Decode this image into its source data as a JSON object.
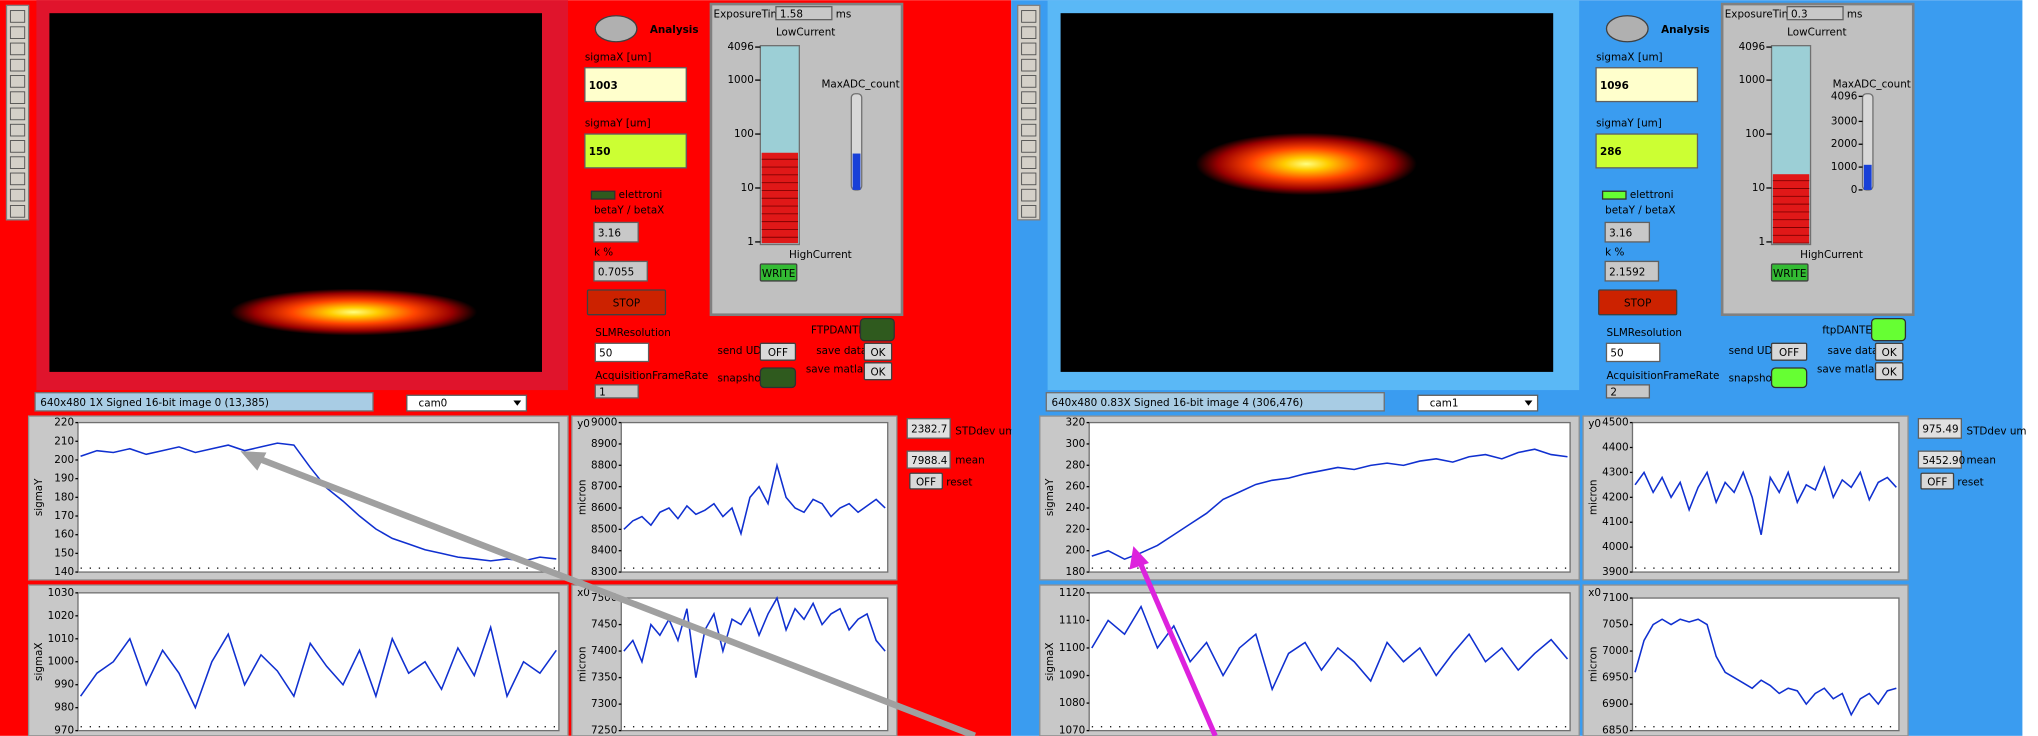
{
  "labels": {
    "analysis": "Analysis",
    "sigma_x": "sigmaX [um]",
    "sigma_y": "sigmaY [um]",
    "elettroni": "elettroni",
    "beta": "betaY / betaX",
    "k": "k %",
    "stop": "STOP",
    "slm": "SLMResolution",
    "acq": "AcquisitionFrameRate",
    "exposure": "ExposureTime",
    "ms": "ms",
    "low": "LowCurrent",
    "high": "HighCurrent",
    "max_adc": "MaxADC_count",
    "write": "WRITE",
    "send_udp": "send UDP",
    "off": "OFF",
    "snapshot": "snapshot",
    "save_data": "save data",
    "save_matlab": "save matlab",
    "ok": "OK",
    "std": "STDdev um",
    "mean": "mean",
    "reset": "reset"
  },
  "gauge_ticks": [
    1,
    10,
    100,
    1000,
    4096
  ],
  "panels": [
    {
      "background": "#ff0000",
      "frame": "#e0142c",
      "led_on": "#2f5a1e",
      "sigma_x": "1003",
      "sigma_y": "150",
      "beta_ratio": "3.16",
      "k_percent": "0.7055",
      "slm_resolution": "50",
      "frame_rate": "1",
      "exposure": "1.58",
      "current_level": 45,
      "ftp_label": "FTPDANTE",
      "status": "640x480 1X Signed 16-bit image 0    (13,385)",
      "camera": "cam0",
      "std": "2382.7",
      "mean": "7988.4",
      "plots": [
        {
          "type": "line",
          "y_label": "sigmaY",
          "color": "#1030d0",
          "ylim": [
            140,
            220
          ],
          "yticks": [
            140,
            150,
            160,
            170,
            180,
            190,
            200,
            210,
            220
          ],
          "values": [
            202,
            205,
            204,
            206,
            203,
            205,
            207,
            204,
            206,
            208,
            205,
            207,
            209,
            208,
            196,
            185,
            178,
            170,
            163,
            158,
            155,
            152,
            150,
            148,
            147,
            146,
            147,
            146,
            148,
            147
          ]
        },
        {
          "type": "line",
          "y_label": "micron",
          "corner_label": "y0",
          "color": "#1030d0",
          "ylim": [
            8300,
            9000
          ],
          "yticks": [
            8300,
            8400,
            8500,
            8600,
            8700,
            8800,
            8900,
            9000
          ],
          "values": [
            8500,
            8540,
            8560,
            8520,
            8580,
            8600,
            8550,
            8610,
            8570,
            8590,
            8620,
            8560,
            8600,
            8480,
            8650,
            8700,
            8620,
            8800,
            8650,
            8600,
            8580,
            8640,
            8620,
            8560,
            8600,
            8620,
            8580,
            8610,
            8640,
            8600
          ]
        },
        {
          "type": "line",
          "y_label": "sigmaX",
          "color": "#1030d0",
          "ylim": [
            970,
            1030
          ],
          "yticks": [
            970,
            980,
            990,
            1000,
            1010,
            1020,
            1030
          ],
          "values": [
            985,
            995,
            1000,
            1010,
            990,
            1005,
            995,
            980,
            1000,
            1012,
            990,
            1003,
            996,
            985,
            1008,
            998,
            990,
            1005,
            985,
            1010,
            995,
            1000,
            988,
            1006,
            994,
            1015,
            985,
            1000,
            995,
            1005
          ]
        },
        {
          "type": "line",
          "y_label": "micron",
          "corner_label": "x0",
          "color": "#1030d0",
          "ylim": [
            7250,
            7500
          ],
          "yticks": [
            7250,
            7300,
            7350,
            7400,
            7450,
            7500
          ],
          "values": [
            7400,
            7420,
            7380,
            7450,
            7430,
            7460,
            7420,
            7480,
            7350,
            7440,
            7470,
            7400,
            7460,
            7450,
            7480,
            7430,
            7470,
            7500,
            7440,
            7480,
            7460,
            7490,
            7450,
            7470,
            7480,
            7440,
            7460,
            7470,
            7420,
            7400
          ]
        }
      ]
    },
    {
      "background": "#3a9cf0",
      "frame": "#5ab8f6",
      "led_on": "#66ff33",
      "sigma_x": "1096",
      "sigma_y": "286",
      "beta_ratio": "3.16",
      "k_percent": "2.1592",
      "slm_resolution": "50",
      "frame_rate": "2",
      "exposure": "0.3",
      "current_level": 18,
      "ftp_label": "ftpDANTE",
      "adc_ticks": [
        0,
        1000,
        2000,
        3000,
        4096
      ],
      "adc_lim": [
        0,
        4096
      ],
      "adc_level": 1100,
      "status": "640x480 0.83X Signed 16-bit image 4    (306,476)",
      "camera": "cam1",
      "std": "975.49",
      "mean": "5452.90",
      "plots": [
        {
          "type": "line",
          "y_label": "sigmaY",
          "color": "#1030d0",
          "ylim": [
            180,
            320
          ],
          "yticks": [
            180,
            200,
            220,
            240,
            260,
            280,
            300,
            320
          ],
          "values": [
            195,
            200,
            192,
            198,
            205,
            215,
            225,
            235,
            248,
            255,
            262,
            266,
            268,
            272,
            275,
            278,
            276,
            280,
            282,
            280,
            284,
            286,
            283,
            288,
            290,
            286,
            292,
            295,
            290,
            288
          ]
        },
        {
          "type": "line",
          "y_label": "micron",
          "corner_label": "y0",
          "color": "#1030d0",
          "ylim": [
            3900,
            4500
          ],
          "yticks": [
            3900,
            4000,
            4100,
            4200,
            4300,
            4400,
            4500
          ],
          "values": [
            4250,
            4300,
            4220,
            4280,
            4200,
            4260,
            4150,
            4240,
            4300,
            4180,
            4260,
            4220,
            4300,
            4200,
            4050,
            4280,
            4220,
            4300,
            4180,
            4250,
            4230,
            4320,
            4200,
            4270,
            4240,
            4300,
            4190,
            4260,
            4280,
            4240
          ]
        },
        {
          "type": "line",
          "y_label": "sigmaX",
          "color": "#1030d0",
          "ylim": [
            1070,
            1120
          ],
          "yticks": [
            1070,
            1080,
            1090,
            1100,
            1110,
            1120
          ],
          "values": [
            1100,
            1110,
            1105,
            1115,
            1100,
            1108,
            1095,
            1102,
            1090,
            1100,
            1105,
            1085,
            1098,
            1102,
            1092,
            1100,
            1095,
            1088,
            1102,
            1095,
            1100,
            1090,
            1098,
            1105,
            1095,
            1100,
            1092,
            1098,
            1103,
            1096
          ]
        },
        {
          "type": "line",
          "y_label": "micron",
          "corner_label": "x0",
          "color": "#1030d0",
          "ylim": [
            6850,
            7100
          ],
          "yticks": [
            6850,
            6900,
            6950,
            7000,
            7050,
            7100
          ],
          "values": [
            6960,
            7020,
            7050,
            7060,
            7050,
            7060,
            7055,
            7060,
            7050,
            6990,
            6960,
            6950,
            6940,
            6930,
            6945,
            6935,
            6920,
            6930,
            6925,
            6900,
            6920,
            6930,
            6910,
            6920,
            6880,
            6910,
            6920,
            6900,
            6925,
            6930
          ]
        }
      ]
    }
  ]
}
